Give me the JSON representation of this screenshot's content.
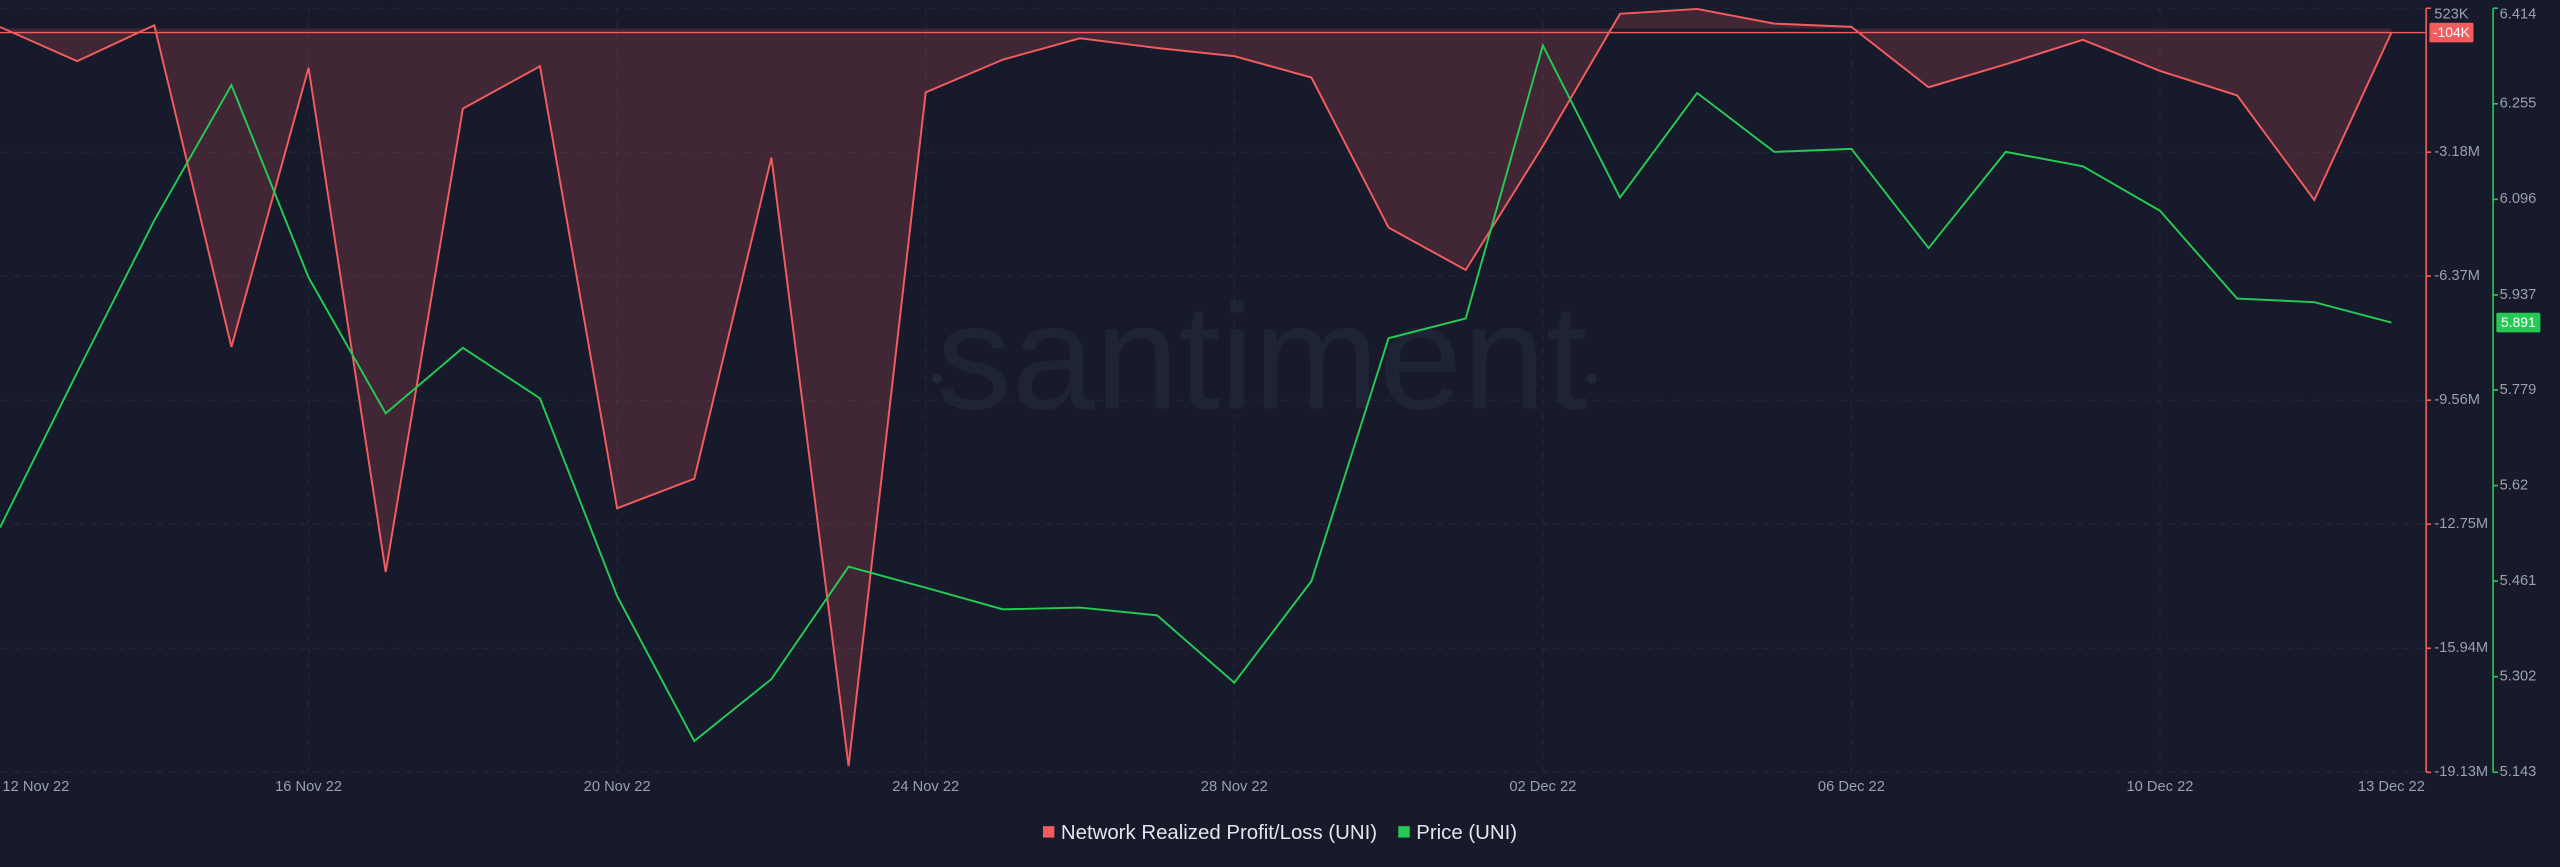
{
  "chart_data": {
    "type": "line",
    "watermark": "santiment",
    "categories": [
      "12 Nov 22",
      null,
      null,
      null,
      "16 Nov 22",
      null,
      null,
      null,
      "20 Nov 22",
      null,
      null,
      null,
      "24 Nov 22",
      null,
      null,
      null,
      "28 Nov 22",
      null,
      null,
      null,
      "02 Dec 22",
      null,
      null,
      null,
      "06 Dec 22",
      null,
      null,
      null,
      "10 Dec 22",
      null,
      null,
      "13 Dec 22"
    ],
    "series": [
      {
        "name": "Network Realized Profit/Loss (UNI)",
        "color": "#f25c5e",
        "area": true,
        "axis": "y",
        "values": [
          40000,
          -840000,
          84000,
          -8190000,
          -1010000,
          -13980000,
          -2060000,
          -970000,
          -12340000,
          -11580000,
          -3320000,
          -18970000,
          -1640000,
          -800000,
          -250000,
          -500000,
          -710000,
          -1260000,
          -5120000,
          -6210000,
          -3020000,
          378000,
          504000,
          126000,
          42000,
          -1510000,
          -920000,
          -290000,
          -1090000,
          -1720000,
          -4410000,
          -104000
        ],
        "value_labels": [
          null,
          null,
          null,
          null,
          null,
          null,
          null,
          null,
          null,
          null,
          null,
          null,
          null,
          null,
          null,
          null,
          null,
          null,
          null,
          null,
          null,
          null,
          null,
          null,
          null,
          null,
          null,
          null,
          null,
          null,
          null,
          "-104K"
        ]
      },
      {
        "name": "Price (UNI)",
        "color": "#26c953",
        "axis": "y2",
        "values": [
          5.55,
          5.808,
          6.061,
          6.286,
          5.966,
          5.74,
          5.849,
          5.765,
          5.436,
          5.195,
          5.298,
          5.485,
          5.45,
          5.414,
          5.417,
          5.404,
          5.292,
          5.461,
          5.865,
          5.898,
          6.352,
          6.099,
          6.273,
          6.175,
          6.18,
          6.015,
          6.175,
          6.151,
          6.077,
          5.931,
          5.925,
          5.891
        ]
      }
    ],
    "ylim": [
      -19130000,
      523000
    ],
    "yticks": [
      {
        "value": 523000,
        "label": "523K"
      },
      {
        "value": -3180000,
        "label": "-3.18M"
      },
      {
        "value": -6370000,
        "label": "-6.37M"
      },
      {
        "value": -9560000,
        "label": "-9.56M"
      },
      {
        "value": -12750000,
        "label": "-12.75M"
      },
      {
        "value": -15940000,
        "label": "-15.94M"
      },
      {
        "value": -19130000,
        "label": "-19.13M"
      }
    ],
    "y2lim": [
      5.143,
      6.414
    ],
    "y2ticks": [
      6.414,
      6.255,
      6.096,
      5.937,
      5.779,
      5.62,
      5.461,
      5.302,
      5.143
    ],
    "grid": true,
    "legend": "bottom"
  }
}
